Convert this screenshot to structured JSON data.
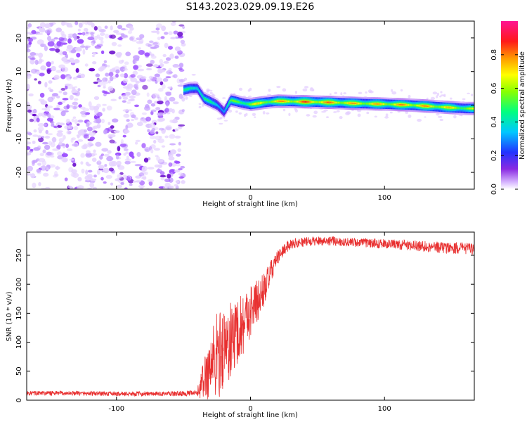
{
  "title": "S143.2023.029.09.19.E26",
  "colors": {
    "snr_line": "#e83030",
    "frame": "#000000",
    "speckle": "#8a2be2"
  },
  "chart_data": [
    {
      "type": "heatmap",
      "xlabel": "Height of straight line (km)",
      "ylabel": "Frequency (Hz)",
      "xlim": [
        -167,
        167
      ],
      "ylim": [
        -25,
        25
      ],
      "x_ticks": [
        {
          "value": -100,
          "label": "-100"
        },
        {
          "value": 0,
          "label": "0"
        },
        {
          "value": 100,
          "label": "100"
        }
      ],
      "y_ticks": [
        {
          "value": -20,
          "label": "-20"
        },
        {
          "value": -10,
          "label": "-10"
        },
        {
          "value": 0,
          "label": "0"
        },
        {
          "value": 10,
          "label": "10"
        },
        {
          "value": 20,
          "label": "20"
        }
      ],
      "noise_region_x": [
        -167,
        -50
      ],
      "colorbar": {
        "label": "Normalized spectral amplitude",
        "range": [
          0,
          1
        ],
        "ticks": [
          {
            "value": 0.0,
            "label": "0.0"
          },
          {
            "value": 0.2,
            "label": "0.2"
          },
          {
            "value": 0.4,
            "label": "0.4"
          },
          {
            "value": 0.6,
            "label": "0.6"
          },
          {
            "value": 0.8,
            "label": "0.8"
          }
        ]
      },
      "ridge": {
        "x": [
          -50,
          -45,
          -40,
          -35,
          -30,
          -25,
          -20,
          -15,
          -10,
          -5,
          0,
          10,
          20,
          40,
          60,
          80,
          100,
          120,
          140,
          160,
          167
        ],
        "freq": [
          4.5,
          5,
          5,
          2,
          1,
          0,
          -2,
          1.5,
          1,
          0.5,
          0.2,
          0.8,
          1.2,
          1,
          0.8,
          0.5,
          0.3,
          0,
          -0.5,
          -1,
          -1
        ],
        "amplitude": [
          0.5,
          0.55,
          0.6,
          0.55,
          0.5,
          0.5,
          0.45,
          0.6,
          0.65,
          0.7,
          0.75,
          0.8,
          0.85,
          0.95,
          0.9,
          0.85,
          0.85,
          0.9,
          0.85,
          0.75,
          0.7
        ]
      }
    },
    {
      "type": "line",
      "xlabel": "Height of straight line (km)",
      "ylabel": "SNR (10 * v/v)",
      "xlim": [
        -167,
        167
      ],
      "ylim": [
        0,
        290
      ],
      "x_ticks": [
        {
          "value": -100,
          "label": "-100"
        },
        {
          "value": 0,
          "label": "0"
        },
        {
          "value": 100,
          "label": "100"
        }
      ],
      "y_ticks": [
        {
          "value": 0,
          "label": "0"
        },
        {
          "value": 50,
          "label": "50"
        },
        {
          "value": 100,
          "label": "100"
        },
        {
          "value": 150,
          "label": "150"
        },
        {
          "value": 200,
          "label": "200"
        },
        {
          "value": 250,
          "label": "250"
        }
      ],
      "envelope": {
        "x": [
          -167,
          -140,
          -100,
          -60,
          -40,
          -36,
          -30,
          -25,
          -20,
          -15,
          -10,
          -5,
          0,
          5,
          10,
          15,
          20,
          25,
          30,
          40,
          50,
          60,
          70,
          80,
          100,
          120,
          140,
          160,
          167
        ],
        "mean": [
          12,
          12,
          11,
          11,
          12,
          30,
          60,
          75,
          90,
          100,
          120,
          135,
          155,
          170,
          190,
          220,
          245,
          260,
          270,
          273,
          275,
          275,
          273,
          272,
          270,
          267,
          264,
          262,
          261
        ],
        "spread": [
          4,
          4,
          4,
          4,
          5,
          30,
          60,
          80,
          70,
          70,
          60,
          55,
          45,
          40,
          30,
          20,
          12,
          10,
          9,
          8,
          8,
          8,
          8,
          8,
          8,
          9,
          10,
          10,
          10
        ]
      }
    }
  ]
}
